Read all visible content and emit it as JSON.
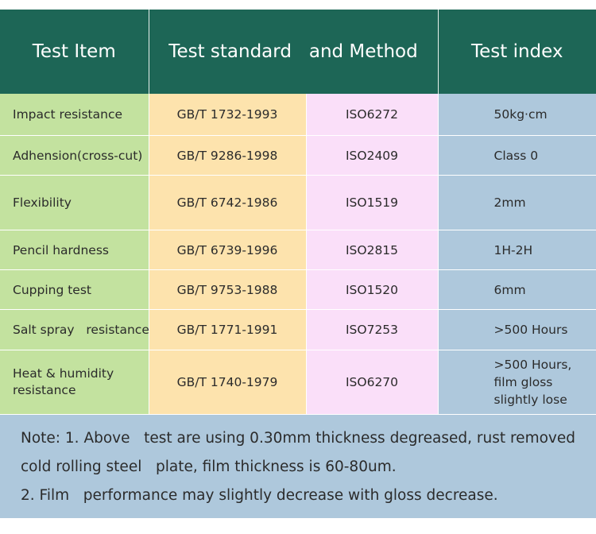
{
  "headers": [
    "Test Item",
    "Test standard   and Method",
    "Test index"
  ],
  "rows": [
    {
      "item": "Impact resistance",
      "standard": "GB/T 1732-1993",
      "iso": "ISO6272",
      "index": "50kg·cm"
    },
    {
      "item": "Adhension(cross-cut)",
      "standard": "GB/T 9286-1998",
      "iso": "ISO2409",
      "index": "Class 0"
    },
    {
      "item": "Flexibility",
      "standard": "GB/T 6742-1986",
      "iso": "ISO1519",
      "index": "2mm"
    },
    {
      "item": "Pencil hardness",
      "standard": "GB/T 6739-1996",
      "iso": "ISO2815",
      "index": "1H-2H"
    },
    {
      "item": "Cupping test",
      "standard": "GB/T 9753-1988",
      "iso": "ISO1520",
      "index": "6mm"
    },
    {
      "item": "Salt spray   resistance",
      "standard": "GB/T 1771-1991",
      "iso": "ISO7253",
      "index": ">500 Hours"
    },
    {
      "item": "Heat  &  humidity\nresistance",
      "standard": "GB/T 1740-1979",
      "iso": "ISO6270",
      "index": ">500   Hours,\nfilm gloss\nslightly lose"
    }
  ],
  "note": {
    "line1": "Note: 1. Above   test are using 0.30mm thickness degreased, rust removed",
    "line2": "cold rolling steel   plate, film thickness is 60-80um.",
    "line3": "2. Film   performance may slightly decrease with gloss decrease."
  },
  "colors": {
    "header": "#1d6656",
    "item_col": "#c3e29f",
    "standard_col": "#fde3ad",
    "iso_col": "#fadff9",
    "index_col": "#aec8dc",
    "note_bg": "#aec8dc"
  }
}
